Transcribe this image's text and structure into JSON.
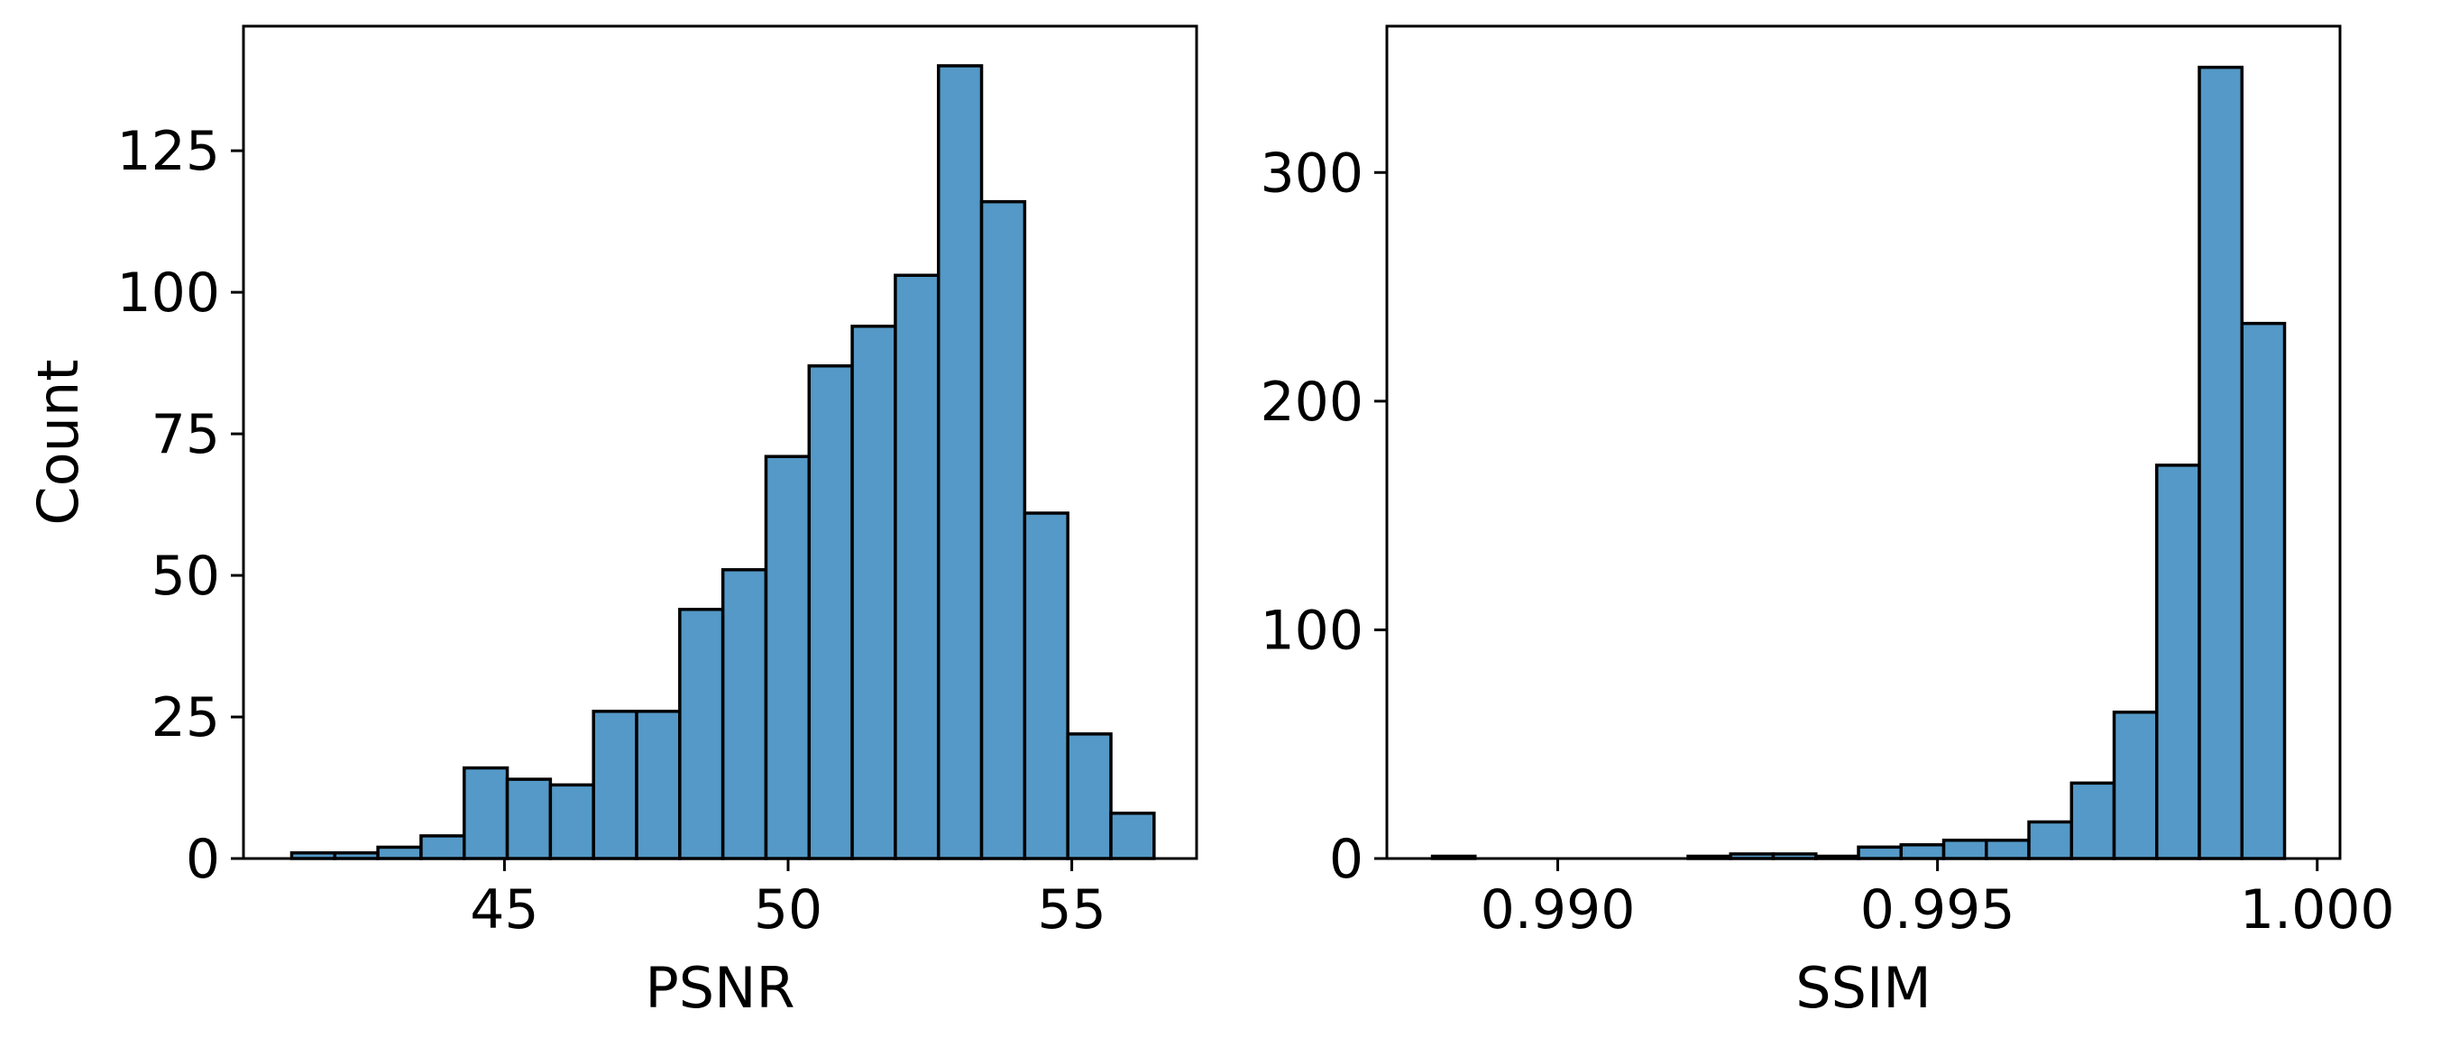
{
  "chart_data": [
    {
      "type": "bar",
      "subtype": "histogram",
      "xlabel": "PSNR",
      "ylabel": "Count",
      "xlim": [
        40.4,
        57.2
      ],
      "ylim": [
        0,
        147
      ],
      "xticks": [
        45,
        50,
        55
      ],
      "xtick_labels": [
        "45",
        "50",
        "55"
      ],
      "yticks": [
        0,
        25,
        50,
        75,
        100,
        125
      ],
      "ytick_labels": [
        "0",
        "25",
        "50",
        "75",
        "100",
        "125"
      ],
      "bin_start": 41.25,
      "bin_width": 0.76,
      "values": [
        1,
        1,
        2,
        4,
        16,
        14,
        13,
        26,
        26,
        44,
        51,
        71,
        87,
        94,
        103,
        140,
        116,
        61,
        22,
        8
      ],
      "bar_color": "#5499c7",
      "edge_color": "#000000",
      "grid": false,
      "legend": "none"
    },
    {
      "type": "bar",
      "subtype": "histogram",
      "xlabel": "SSIM",
      "ylabel": "",
      "xlim": [
        0.98775,
        1.0003
      ],
      "ylim": [
        0,
        364
      ],
      "xticks": [
        0.99,
        0.995,
        1.0
      ],
      "xtick_labels": [
        "0.990",
        "0.995",
        "1.000"
      ],
      "yticks": [
        0,
        100,
        200,
        300
      ],
      "ytick_labels": [
        "0",
        "100",
        "200",
        "300"
      ],
      "bin_start": 0.98835,
      "bin_width": 0.000561,
      "values": [
        1,
        0,
        0,
        0,
        0,
        0,
        1,
        2,
        2,
        1,
        5,
        6,
        8,
        8,
        16,
        33,
        64,
        172,
        346,
        234
      ],
      "bar_color": "#5499c7",
      "edge_color": "#000000",
      "grid": false,
      "legend": "none"
    }
  ]
}
